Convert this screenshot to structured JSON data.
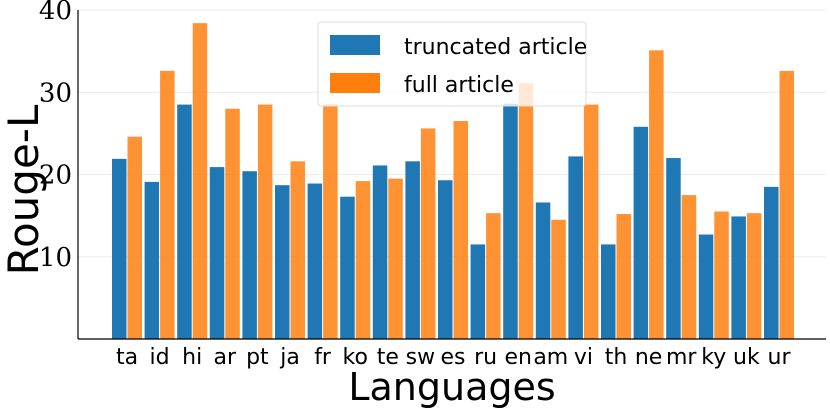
{
  "chart_data": {
    "type": "bar",
    "title": "",
    "xlabel": "Languages",
    "ylabel": "Rouge-L",
    "ylim": [
      0,
      40
    ],
    "yticks": [
      "10",
      "20",
      "30",
      "40"
    ],
    "grid": true,
    "legend_position": "top-center",
    "categories": [
      "ta",
      "id",
      "hi",
      "ar",
      "pt",
      "ja",
      "fr",
      "ko",
      "te",
      "sw",
      "es",
      "ru",
      "en",
      "am",
      "vi",
      "th",
      "ne",
      "mr",
      "ky",
      "uk",
      "ur"
    ],
    "series": [
      {
        "name": "truncated article",
        "color": "#1f77b4",
        "values": [
          21.9,
          19.1,
          28.5,
          20.9,
          20.4,
          18.7,
          18.9,
          17.3,
          21.1,
          21.6,
          19.3,
          11.5,
          28.6,
          16.6,
          22.2,
          11.5,
          25.8,
          22.0,
          12.7,
          14.9,
          18.5
        ]
      },
      {
        "name": "full article",
        "color": "#ff7f0e",
        "values": [
          24.6,
          32.6,
          38.4,
          28.0,
          28.5,
          21.6,
          28.6,
          19.2,
          19.5,
          25.6,
          26.5,
          15.3,
          31.1,
          14.5,
          28.5,
          15.2,
          35.1,
          17.5,
          15.5,
          15.3,
          32.6
        ]
      }
    ]
  }
}
